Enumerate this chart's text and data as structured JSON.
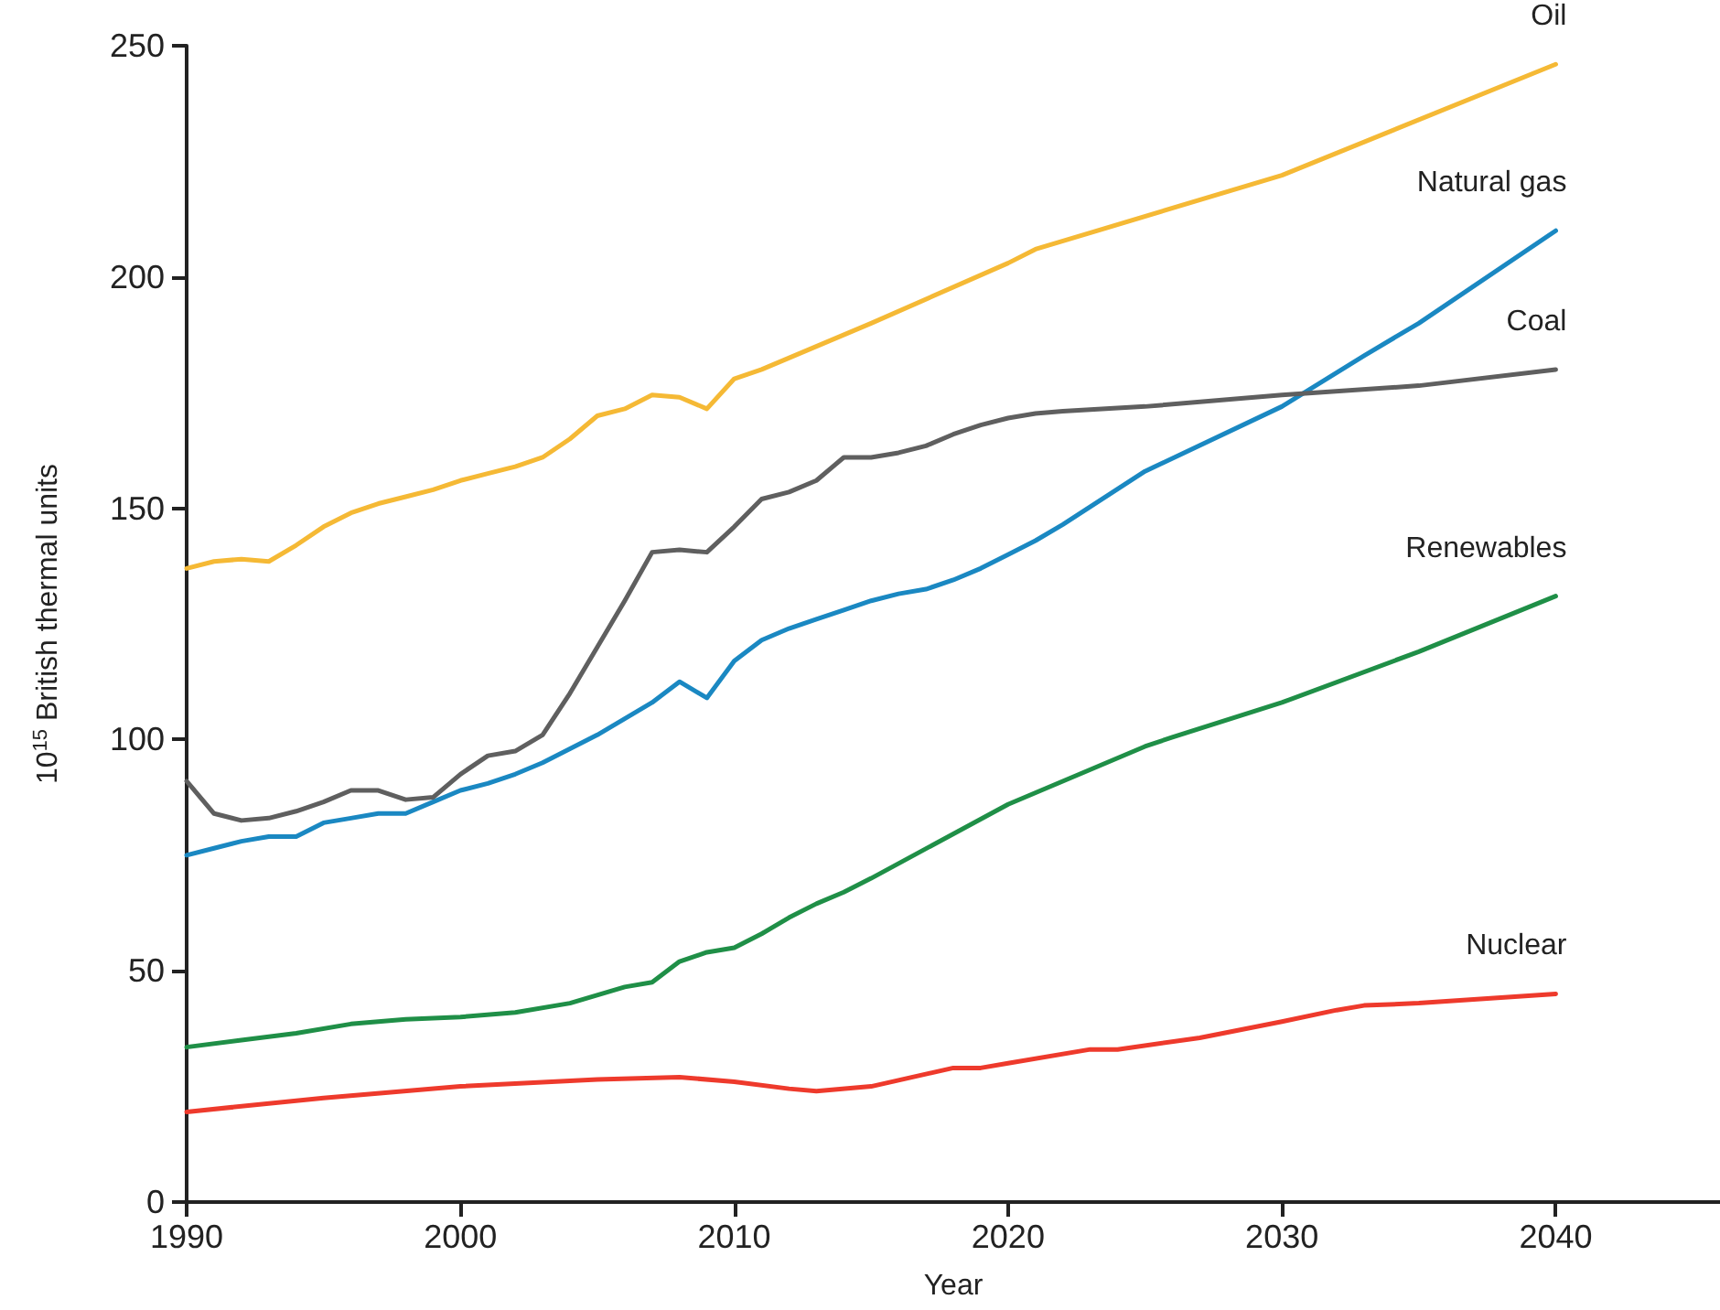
{
  "chart_data": {
    "type": "line",
    "xlabel": "Year",
    "ylabel": "10$^{15}$ British thermal units",
    "xlim": [
      1990,
      2046
    ],
    "xticks": [
      1990,
      2000,
      2010,
      2020,
      2030,
      2040
    ],
    "ylim": [
      0,
      250
    ],
    "yticks": [
      0,
      50,
      100,
      150,
      200,
      250
    ],
    "grid": false,
    "legend": false,
    "marker": "none",
    "line_style": "solid",
    "series": [
      {
        "name": "Oil",
        "color": "#f5b935",
        "x": [
          1990,
          1991,
          1992,
          1993,
          1994,
          1995,
          1996,
          1997,
          1998,
          1999,
          2000,
          2001,
          2002,
          2003,
          2004,
          2005,
          2006,
          2007,
          2008,
          2009,
          2010,
          2011,
          2015,
          2020,
          2021,
          2030,
          2040
        ],
        "values": [
          137,
          138.5,
          139,
          138.5,
          142,
          146,
          149,
          151,
          152.5,
          154,
          156,
          157.5,
          159,
          161,
          165,
          170,
          171.5,
          174.5,
          174,
          171.5,
          178,
          180,
          190,
          203,
          206,
          222,
          246
        ]
      },
      {
        "name": "Natural gas",
        "color": "#1a88c2",
        "x": [
          1990,
          1991,
          1992,
          1993,
          1994,
          1995,
          1996,
          1997,
          1998,
          1999,
          2000,
          2001,
          2002,
          2003,
          2004,
          2005,
          2006,
          2007,
          2008,
          2009,
          2010,
          2011,
          2012,
          2013,
          2014,
          2015,
          2016,
          2017,
          2018,
          2019,
          2020,
          2021,
          2022,
          2025,
          2030,
          2033,
          2035,
          2040
        ],
        "values": [
          75,
          76.5,
          78,
          79,
          79,
          82,
          83,
          84,
          84,
          86.5,
          89,
          90.5,
          92.5,
          95,
          98,
          101,
          104.5,
          108,
          112.5,
          109,
          117,
          121.5,
          124,
          126,
          128,
          130,
          131.5,
          132.5,
          134.5,
          137,
          140,
          143,
          146.5,
          158,
          172,
          183,
          190,
          210
        ]
      },
      {
        "name": "Coal",
        "color": "#5f5f5f",
        "x": [
          1990,
          1991,
          1992,
          1993,
          1994,
          1995,
          1996,
          1997,
          1998,
          1999,
          2000,
          2001,
          2002,
          2003,
          2004,
          2005,
          2006,
          2007,
          2008,
          2009,
          2010,
          2011,
          2012,
          2013,
          2014,
          2015,
          2016,
          2017,
          2018,
          2019,
          2020,
          2021,
          2022,
          2025,
          2030,
          2035,
          2040
        ],
        "values": [
          91,
          84,
          82.5,
          83,
          84.5,
          86.5,
          89,
          89,
          87,
          87.5,
          92.5,
          96.5,
          97.5,
          101,
          110,
          120,
          130,
          140.5,
          141,
          140.5,
          146,
          152,
          153.5,
          156,
          161,
          161,
          162,
          163.5,
          166,
          168,
          169.5,
          170.5,
          171,
          172,
          174.5,
          176.5,
          180
        ]
      },
      {
        "name": "Renewables",
        "color": "#1f8f47",
        "x": [
          1990,
          1992,
          1994,
          1996,
          1998,
          2000,
          2002,
          2004,
          2006,
          2007,
          2008,
          2009,
          2010,
          2011,
          2012,
          2013,
          2014,
          2015,
          2020,
          2025,
          2026,
          2030,
          2035,
          2040
        ],
        "values": [
          33.5,
          35,
          36.5,
          38.5,
          39.5,
          40,
          41,
          43,
          46.5,
          47.5,
          52,
          54,
          55,
          58,
          61.5,
          64.5,
          67,
          70,
          86,
          98.5,
          100.5,
          108,
          119,
          131
        ]
      },
      {
        "name": "Nuclear",
        "color": "#ee3a2c",
        "x": [
          1990,
          1995,
          2000,
          2005,
          2008,
          2010,
          2012,
          2013,
          2015,
          2018,
          2019,
          2020,
          2023,
          2024,
          2027,
          2030,
          2032,
          2033,
          2035,
          2040
        ],
        "values": [
          19.5,
          22.5,
          25,
          26.5,
          27,
          26,
          24.5,
          24,
          25,
          29,
          29,
          30,
          33,
          33,
          35.5,
          39,
          41.5,
          42.5,
          43,
          45
        ]
      }
    ]
  }
}
